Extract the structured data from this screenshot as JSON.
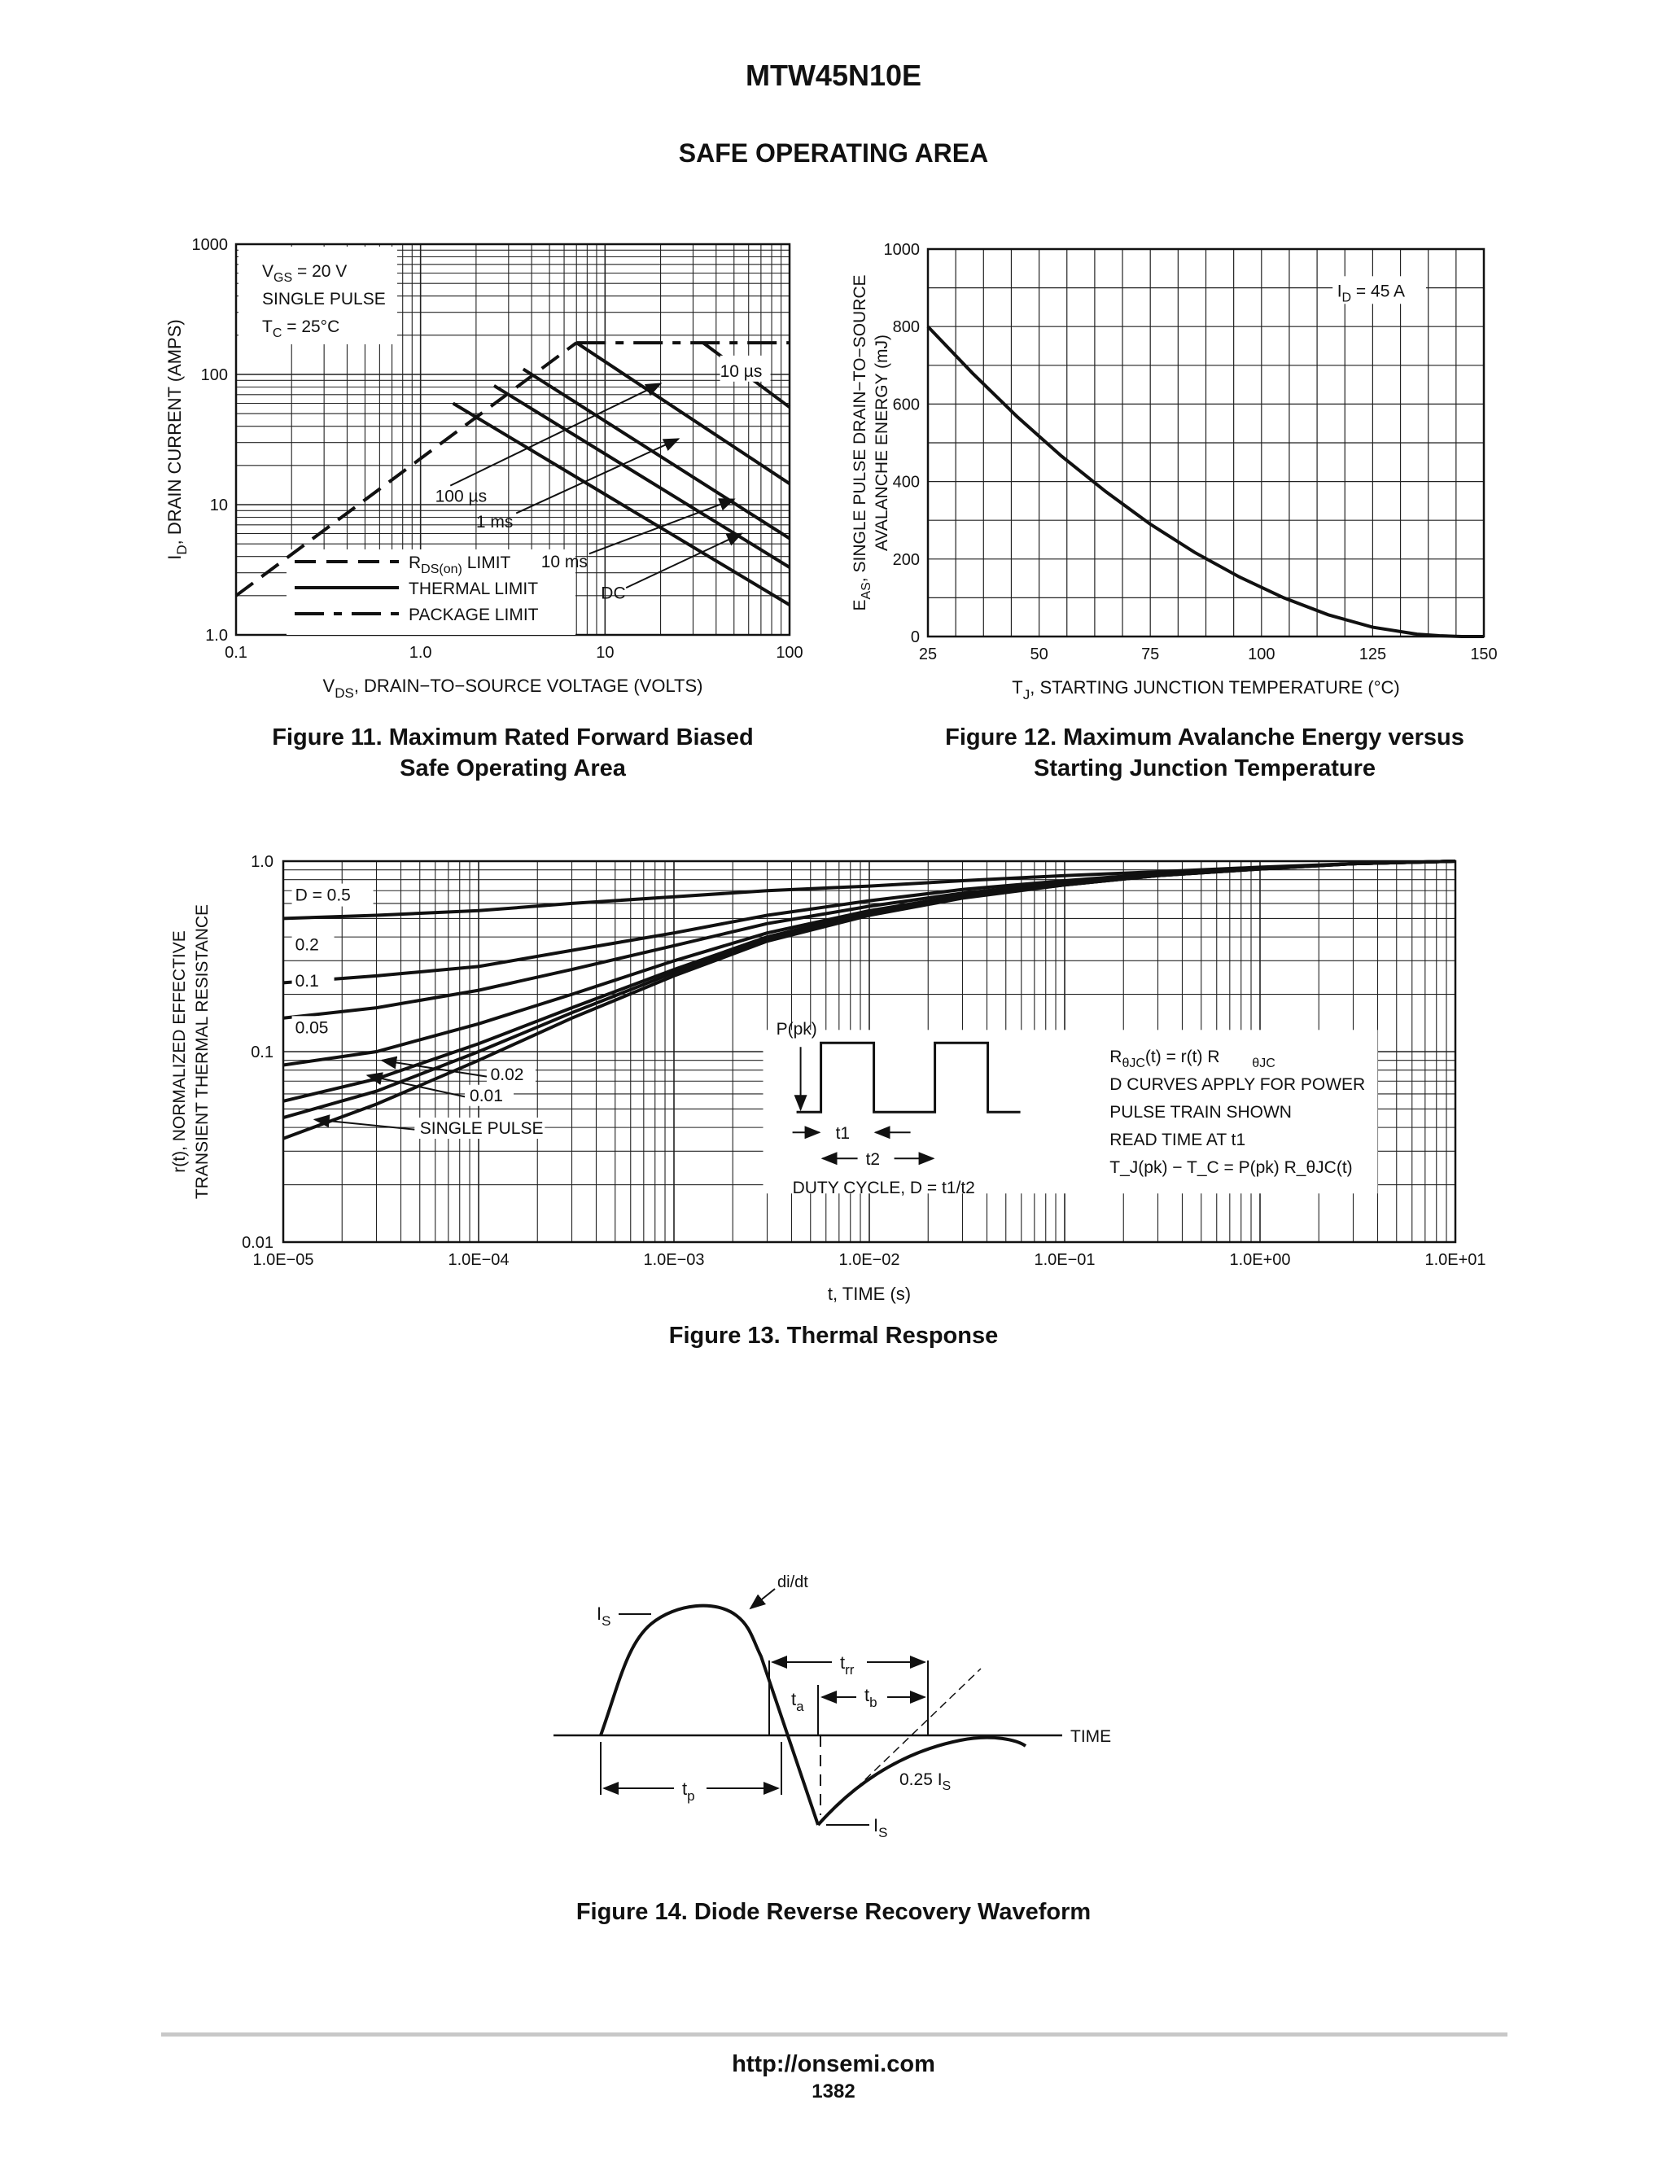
{
  "page": {
    "part_number": "MTW45N10E",
    "section_title": "SAFE OPERATING AREA",
    "footer_url": "http://onsemi.com",
    "page_number": "1382"
  },
  "figures": {
    "fig11_caption": [
      "Figure 11. Maximum Rated Forward Biased",
      "Safe Operating Area"
    ],
    "fig12_caption": [
      "Figure 12. Maximum Avalanche Energy versus",
      "Starting Junction Temperature"
    ],
    "fig13_caption": "Figure 13. Thermal Response",
    "fig14_caption": "Figure 14. Diode Reverse Recovery Waveform"
  },
  "chart_data": [
    {
      "type": "line",
      "id": "fig11",
      "xlabel_main": "V",
      "xlabel_sub": "DS",
      "xlabel_rest": ", DRAIN−TO−SOURCE VOLTAGE (VOLTS)",
      "ylabel_main": "I",
      "ylabel_sub": "D",
      "ylabel_rest": ", DRAIN CURRENT (AMPS)",
      "xscale": "log",
      "yscale": "log",
      "xlim": [
        0.1,
        100
      ],
      "ylim": [
        1,
        1000
      ],
      "xticks": [
        {
          "v": 0.1,
          "t": "0.1"
        },
        {
          "v": 1,
          "t": "1.0"
        },
        {
          "v": 10,
          "t": "10"
        },
        {
          "v": 100,
          "t": "100"
        }
      ],
      "yticks": [
        {
          "v": 1,
          "t": "1.0"
        },
        {
          "v": 10,
          "t": "10"
        },
        {
          "v": 100,
          "t": "100"
        },
        {
          "v": 1000,
          "t": "1000"
        }
      ],
      "conditions": [
        "V_GS = 20 V",
        "SINGLE PULSE",
        "T_C = 25°C"
      ],
      "legend": [
        "R_DS(on) LIMIT",
        "THERMAL LIMIT",
        "PACKAGE LIMIT"
      ],
      "series": [
        {
          "name": "R_DS(on) LIMIT",
          "style": "dashed",
          "points": [
            [
              0.1,
              2
            ],
            [
              7,
              175
            ]
          ]
        },
        {
          "name": "PACKAGE LIMIT",
          "style": "dashdot",
          "points": [
            [
              7,
              175
            ],
            [
              100,
              175
            ]
          ]
        },
        {
          "name": "10 µs",
          "style": "solid",
          "points": [
            [
              34,
              175
            ],
            [
              100,
              56
            ]
          ]
        },
        {
          "name": "100 µs",
          "style": "solid",
          "points": [
            [
              7,
              175
            ],
            [
              100,
              14.5
            ]
          ]
        },
        {
          "name": "1 ms",
          "style": "solid",
          "points": [
            [
              3.6,
              110
            ],
            [
              100,
              5.5
            ]
          ]
        },
        {
          "name": "10 ms",
          "style": "solid",
          "points": [
            [
              2.5,
              82
            ],
            [
              100,
              3.3
            ]
          ]
        },
        {
          "name": "DC",
          "style": "solid",
          "points": [
            [
              1.5,
              60
            ],
            [
              100,
              1.7
            ]
          ]
        }
      ],
      "labels": [
        "10 µs",
        "100 µs",
        "1 ms",
        "10 ms",
        "DC"
      ]
    },
    {
      "type": "line",
      "id": "fig12",
      "xlabel_main": "T",
      "xlabel_sub": "J",
      "xlabel_rest": ", STARTING JUNCTION TEMPERATURE (°C)",
      "ylabel_line1": "E",
      "ylabel_sub": "AS",
      "ylabel_rest": ", SINGLE PULSE DRAIN−TO−SOURCE",
      "ylabel_line2": "AVALANCHE ENERGY (mJ)",
      "xlim": [
        25,
        150
      ],
      "ylim": [
        0,
        1000
      ],
      "xticks": [
        25,
        50,
        75,
        100,
        125,
        150
      ],
      "yticks": [
        0,
        200,
        400,
        600,
        800,
        1000
      ],
      "annotation": "I_D = 45 A",
      "series": [
        {
          "name": "I_D = 45 A",
          "x": [
            25,
            35,
            45,
            55,
            65,
            75,
            85,
            95,
            105,
            115,
            125,
            135,
            140,
            145,
            150
          ],
          "y": [
            800,
            680,
            568,
            466,
            374,
            290,
            217,
            154,
            100,
            56,
            24,
            6,
            2,
            0,
            0
          ]
        }
      ]
    },
    {
      "type": "line",
      "id": "fig13",
      "xlabel": "t, TIME (s)",
      "ylabel_line1": "r(t), NORMALIZED EFFECTIVE",
      "ylabel_line2": "TRANSIENT THERMAL RESISTANCE",
      "xscale": "log",
      "yscale": "log",
      "xlim": [
        1e-05,
        10
      ],
      "ylim": [
        0.01,
        1
      ],
      "xticks": [
        {
          "v": 1e-05,
          "t": "1.0E−05"
        },
        {
          "v": 0.0001,
          "t": "1.0E−04"
        },
        {
          "v": 0.001,
          "t": "1.0E−03"
        },
        {
          "v": 0.01,
          "t": "1.0E−02"
        },
        {
          "v": 0.1,
          "t": "1.0E−01"
        },
        {
          "v": 1,
          "t": "1.0E+00"
        },
        {
          "v": 10,
          "t": "1.0E+01"
        }
      ],
      "yticks": [
        {
          "v": 0.01,
          "t": "0.01"
        },
        {
          "v": 0.1,
          "t": "0.1"
        },
        {
          "v": 1,
          "t": "1.0"
        }
      ],
      "x": [
        1e-05,
        3e-05,
        0.0001,
        0.0003,
        0.001,
        0.003,
        0.01,
        0.03,
        0.1,
        0.3,
        1,
        3,
        10
      ],
      "series": [
        {
          "name": "D = 0.5",
          "label": "D = 0.5",
          "y": [
            0.5,
            0.52,
            0.55,
            0.6,
            0.65,
            0.7,
            0.74,
            0.79,
            0.84,
            0.88,
            0.93,
            0.97,
            1.0
          ]
        },
        {
          "name": "0.2",
          "label": "0.2",
          "y": [
            0.23,
            0.25,
            0.28,
            0.34,
            0.42,
            0.52,
            0.62,
            0.71,
            0.79,
            0.86,
            0.92,
            0.97,
            1.0
          ]
        },
        {
          "name": "0.1",
          "label": "0.1",
          "y": [
            0.15,
            0.17,
            0.21,
            0.27,
            0.36,
            0.47,
            0.58,
            0.68,
            0.77,
            0.85,
            0.92,
            0.97,
            1.0
          ]
        },
        {
          "name": "0.05",
          "label": "0.05",
          "y": [
            0.085,
            0.1,
            0.14,
            0.2,
            0.3,
            0.42,
            0.55,
            0.66,
            0.76,
            0.85,
            0.92,
            0.97,
            1.0
          ]
        },
        {
          "name": "0.02",
          "label": "0.02",
          "y": [
            0.055,
            0.072,
            0.11,
            0.17,
            0.27,
            0.4,
            0.54,
            0.65,
            0.75,
            0.84,
            0.91,
            0.97,
            1.0
          ]
        },
        {
          "name": "0.01",
          "label": "0.01",
          "y": [
            0.045,
            0.062,
            0.1,
            0.16,
            0.26,
            0.39,
            0.53,
            0.65,
            0.75,
            0.84,
            0.91,
            0.97,
            1.0
          ]
        },
        {
          "name": "SINGLE PULSE",
          "label": "SINGLE PULSE",
          "y": [
            0.035,
            0.053,
            0.09,
            0.15,
            0.25,
            0.38,
            0.52,
            0.64,
            0.75,
            0.84,
            0.91,
            0.97,
            1.0
          ]
        }
      ],
      "notes": [
        "R_θJC(t) = r(t) R_θJC",
        "D CURVES APPLY FOR POWER",
        "PULSE TRAIN SHOWN",
        "READ TIME AT t1",
        "T_J(pk) − T_C = P(pk) R_θJC(t)"
      ],
      "inset": {
        "p_label": "P(pk)",
        "t1": "t1",
        "t2": "t2",
        "duty": "DUTY CYCLE, D = t1/t2"
      }
    }
  ],
  "waveform": {
    "labels": {
      "is_top": "I_S",
      "didt": "di/dt",
      "trr": "t_rr",
      "ta": "t_a",
      "tb": "t_b",
      "time": "TIME",
      "tp": "t_p",
      "quarter_is": "0.25 I_S",
      "is_bottom": "I_S"
    }
  }
}
